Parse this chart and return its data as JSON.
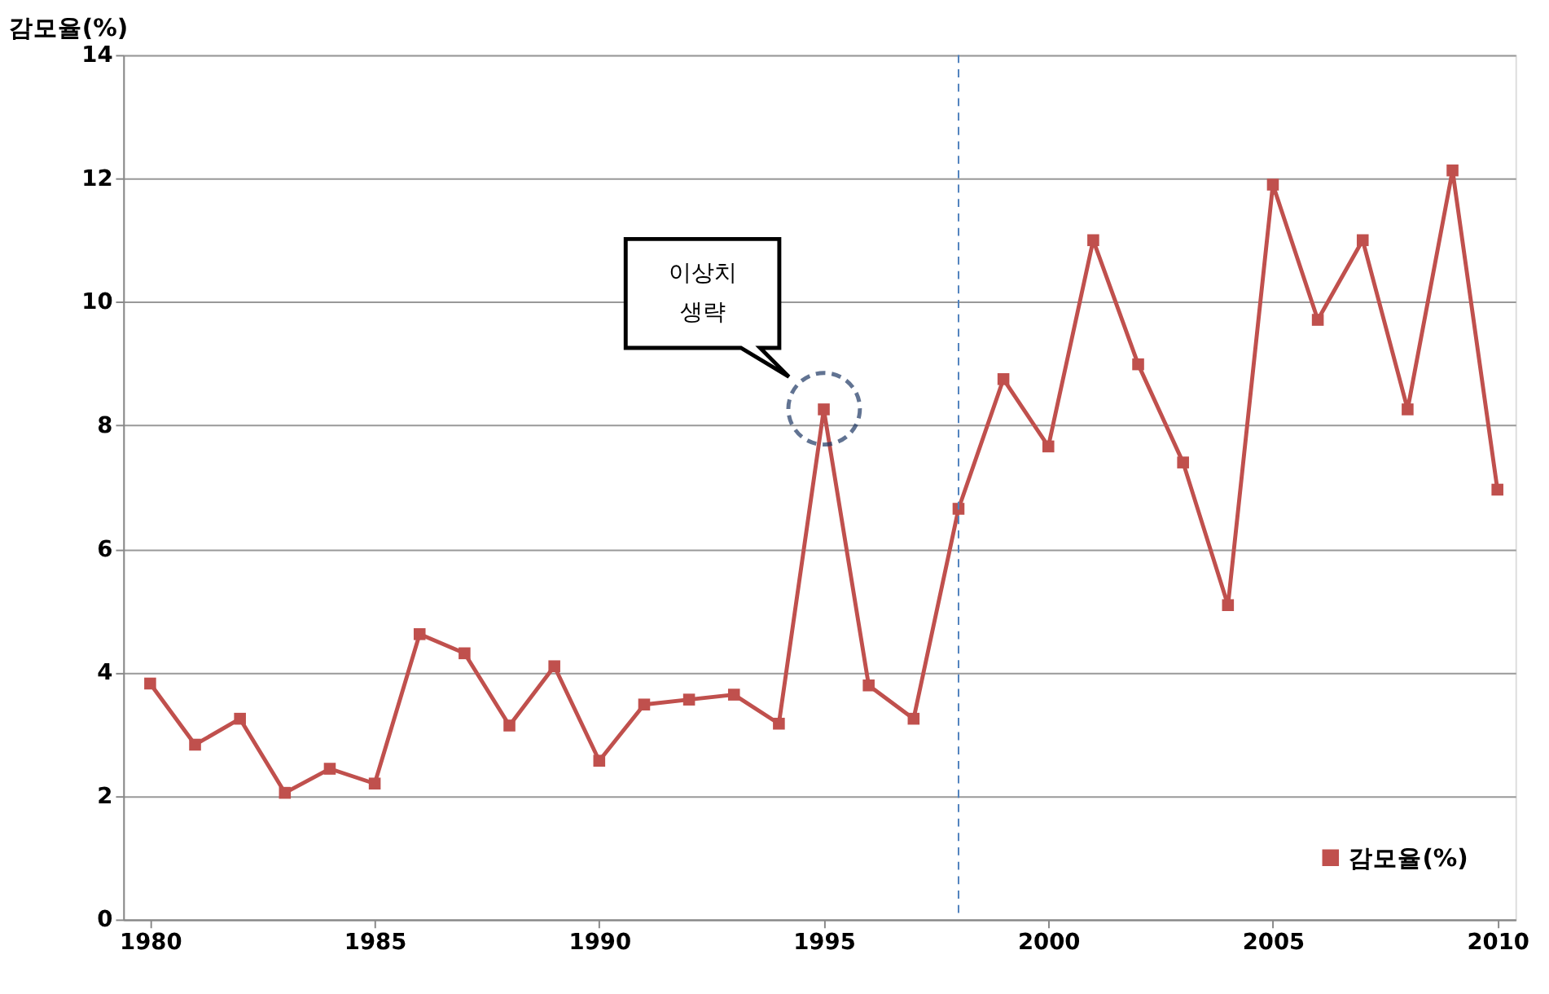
{
  "chart_data": {
    "type": "line",
    "ylabel": "감모율(%)",
    "x": [
      1980,
      1981,
      1982,
      1983,
      1984,
      1985,
      1986,
      1987,
      1988,
      1989,
      1990,
      1991,
      1992,
      1993,
      1994,
      1995,
      1996,
      1997,
      1998,
      1999,
      2000,
      2001,
      2002,
      2003,
      2004,
      2005,
      2006,
      2007,
      2008,
      2009,
      2010
    ],
    "series": [
      {
        "name": "감모율(%)",
        "color": "#c0504d",
        "values": [
          3.82,
          2.83,
          3.25,
          2.05,
          2.44,
          2.2,
          4.62,
          4.31,
          3.14,
          4.1,
          2.57,
          3.48,
          3.56,
          3.64,
          3.17,
          8.26,
          3.79,
          3.25,
          6.65,
          8.75,
          7.66,
          11.0,
          8.99,
          7.4,
          5.09,
          11.9,
          9.71,
          11.0,
          8.26,
          12.13,
          6.96
        ]
      }
    ],
    "xlim": [
      1979.4,
      2010.4
    ],
    "xticks": [
      1980,
      1985,
      1990,
      1995,
      2000,
      2005,
      2010
    ],
    "ylim": [
      0,
      14
    ],
    "yticks": [
      0,
      2,
      4,
      6,
      8,
      10,
      12,
      14
    ],
    "ref_lines": [
      {
        "axis": "x",
        "value": 1998,
        "color": "#4f81bd",
        "line_style": "dashed"
      }
    ],
    "annotations": [
      "이상치 생략"
    ],
    "grid": "y",
    "legend": "bottom right",
    "marker": "square",
    "line_style": "solid"
  }
}
